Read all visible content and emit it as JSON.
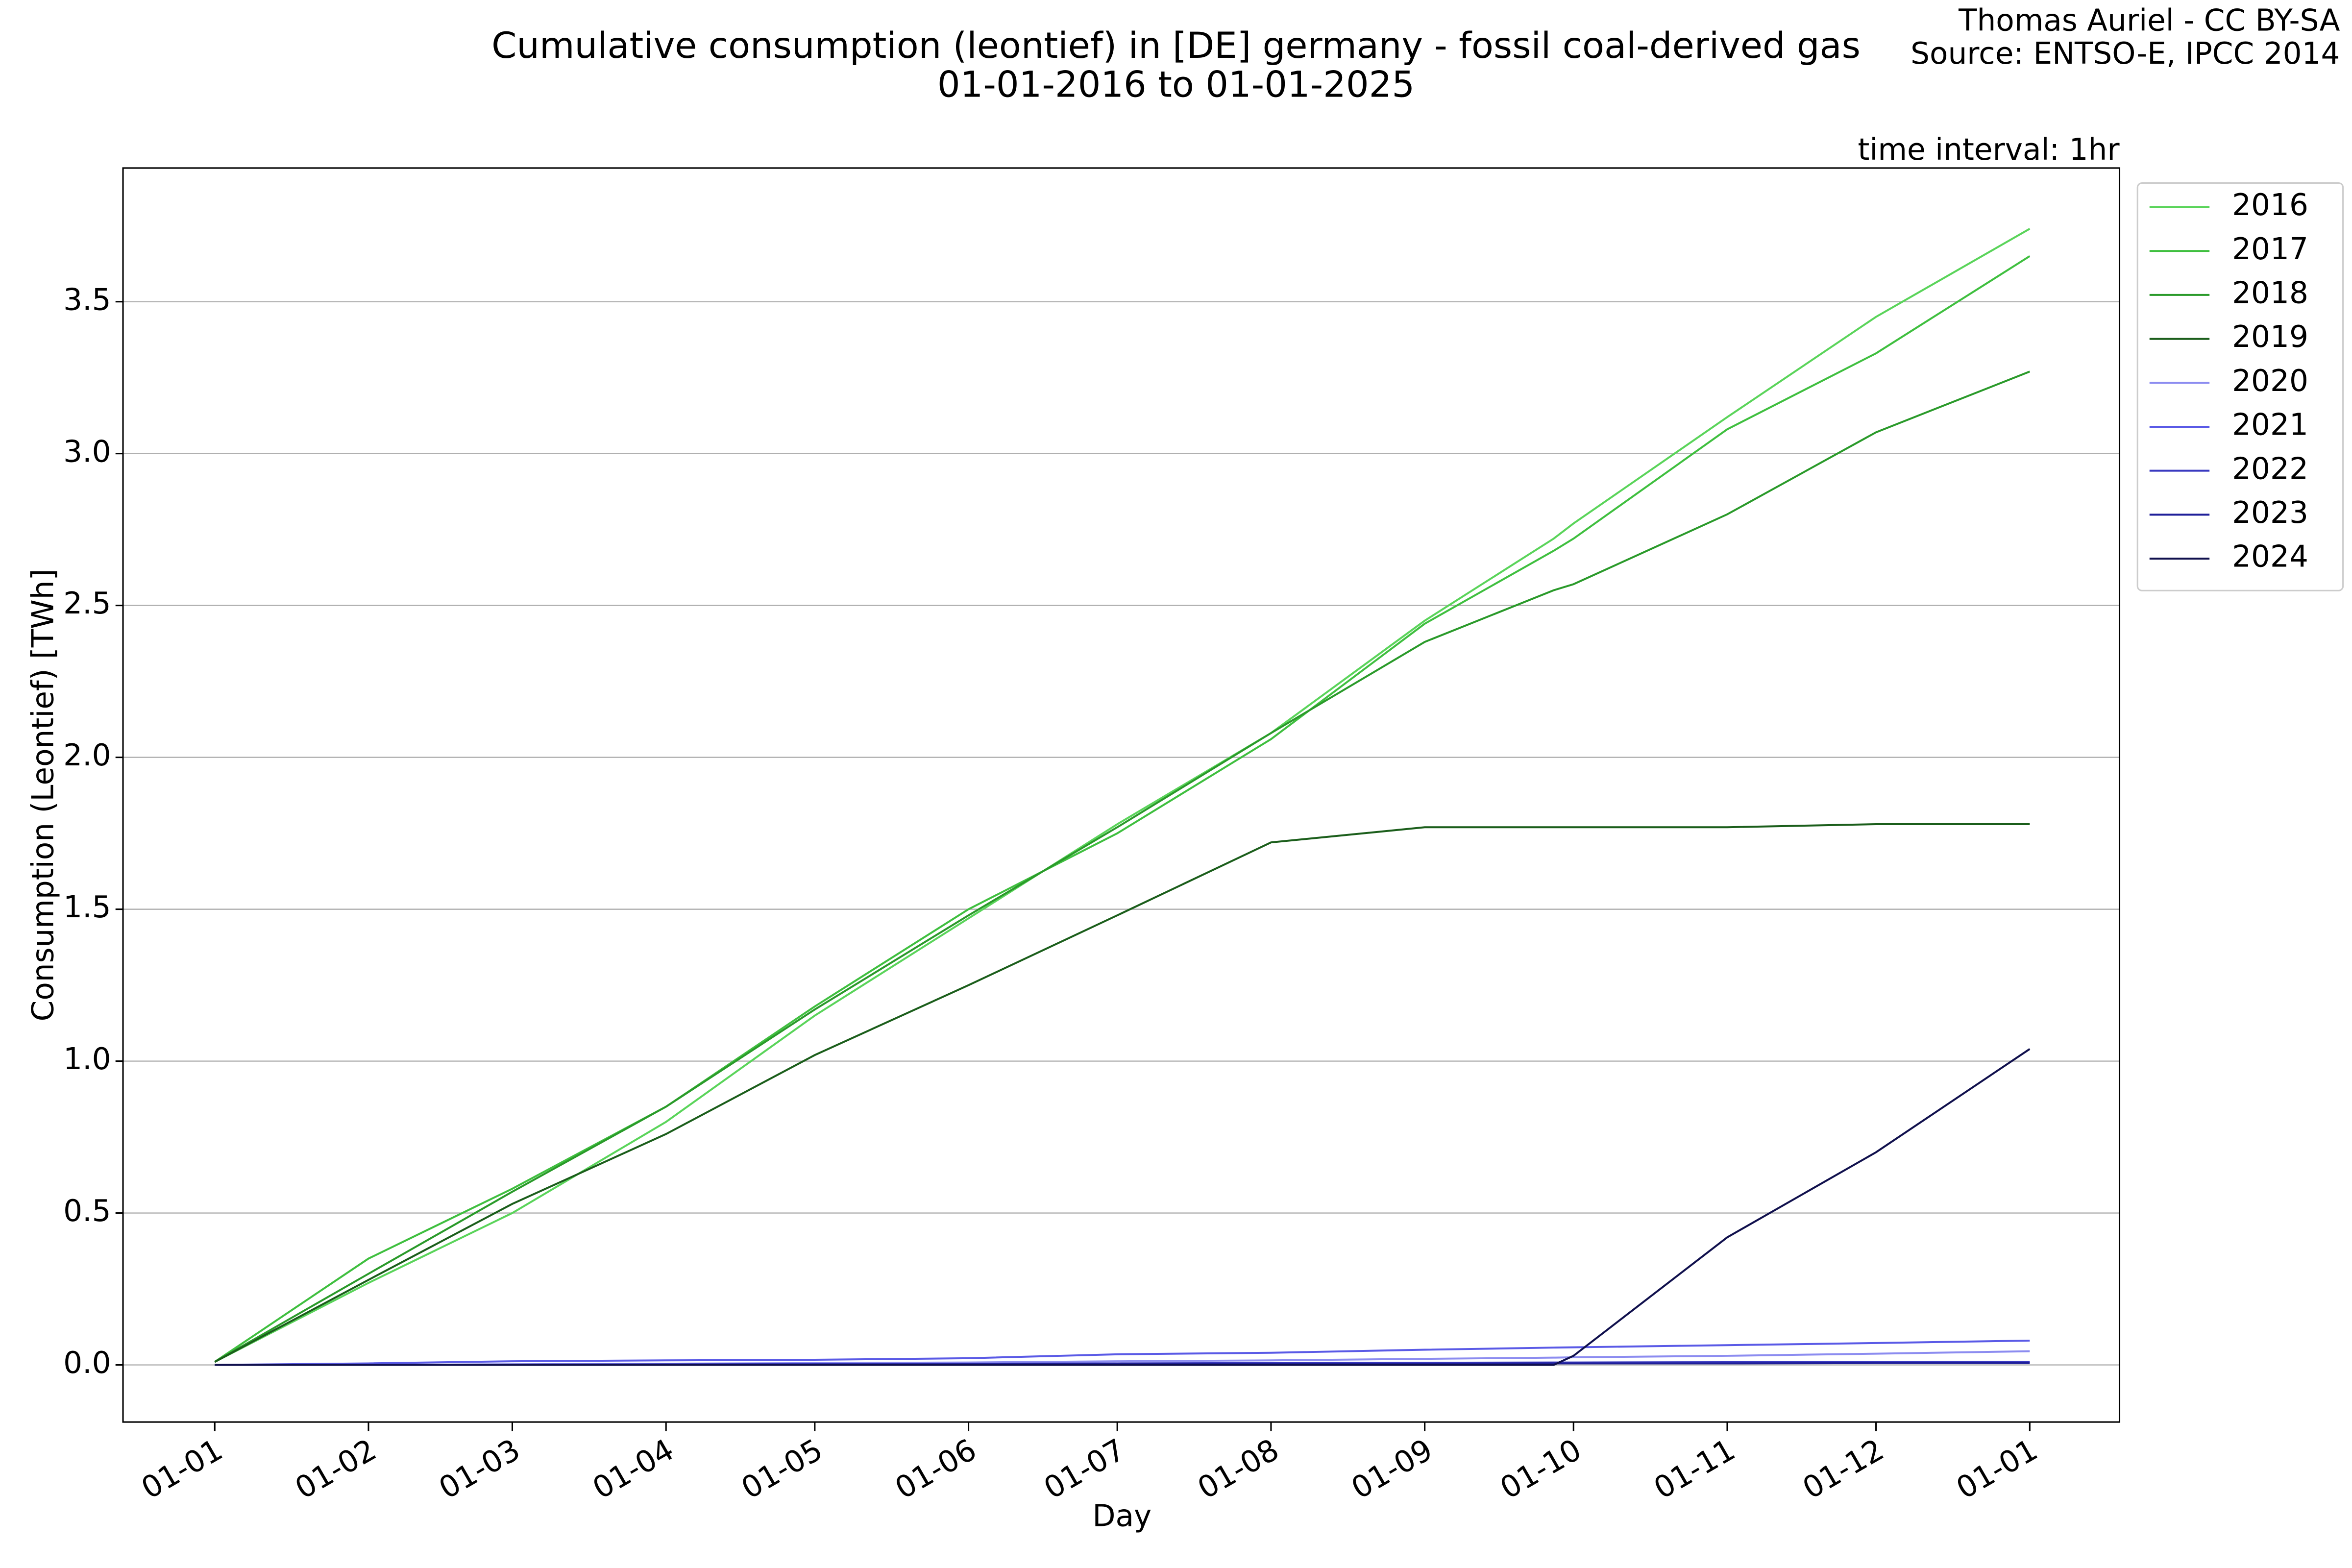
{
  "chart_data": {
    "type": "line",
    "title": "Cumulative consumption (leontief) in [DE] germany - fossil coal-derived gas",
    "subtitle": "01-01-2016 to 01-01-2025",
    "credit": "Thomas Auriel - CC BY-SA",
    "source": "Source: ENTSO-E, IPCC 2014",
    "annotation": "time interval: 1hr",
    "x_label": "Day",
    "y_label": "Consumption (Leontief) [TWh]",
    "x": [
      0,
      31,
      60,
      91,
      121,
      152,
      182,
      213,
      244,
      270,
      274,
      305,
      335,
      366
    ],
    "series": [
      {
        "name": "2016",
        "color": "#5ad45a",
        "values": [
          0.01,
          0.27,
          0.5,
          0.8,
          1.15,
          1.47,
          1.78,
          2.08,
          2.45,
          2.72,
          2.77,
          3.12,
          3.45,
          3.74
        ]
      },
      {
        "name": "2017",
        "color": "#3fbf3f",
        "values": [
          0.01,
          0.35,
          0.58,
          0.85,
          1.18,
          1.5,
          1.75,
          2.06,
          2.44,
          2.68,
          2.72,
          3.08,
          3.33,
          3.65
        ]
      },
      {
        "name": "2018",
        "color": "#2a9a2a",
        "values": [
          0.01,
          0.3,
          0.57,
          0.85,
          1.17,
          1.48,
          1.77,
          2.08,
          2.38,
          2.55,
          2.57,
          2.8,
          3.07,
          3.27
        ]
      },
      {
        "name": "2019",
        "color": "#1b5e1b",
        "values": [
          0.01,
          0.28,
          0.53,
          0.76,
          1.02,
          1.25,
          1.48,
          1.72,
          1.77,
          1.77,
          1.77,
          1.77,
          1.78,
          1.78
        ]
      },
      {
        "name": "2020",
        "color": "#8c8cf0",
        "values": [
          0,
          0,
          0.002,
          0.004,
          0.006,
          0.008,
          0.012,
          0.015,
          0.02,
          0.024,
          0.025,
          0.03,
          0.037,
          0.045
        ]
      },
      {
        "name": "2021",
        "color": "#5a5ae6",
        "values": [
          0,
          0.005,
          0.012,
          0.015,
          0.017,
          0.022,
          0.035,
          0.04,
          0.05,
          0.057,
          0.058,
          0.065,
          0.072,
          0.08
        ]
      },
      {
        "name": "2022",
        "color": "#3a3ac0",
        "values": [
          0,
          0,
          0.001,
          0.002,
          0.003,
          0.004,
          0.005,
          0.006,
          0.007,
          0.008,
          0.008,
          0.009,
          0.009,
          0.01
        ]
      },
      {
        "name": "2023",
        "color": "#1f1f99",
        "values": [
          0,
          0,
          0,
          0,
          0.001,
          0.002,
          0.003,
          0.004,
          0.004,
          0.005,
          0.005,
          0.005,
          0.006,
          0.006
        ]
      },
      {
        "name": "2024",
        "color": "#10104d",
        "values": [
          0,
          0,
          0,
          0,
          0,
          0,
          0,
          0,
          0,
          0,
          0.03,
          0.42,
          0.7,
          1.04
        ]
      }
    ],
    "xlim": [
      -18.5,
      384.1
    ],
    "ylim": [
      -0.188,
      3.94
    ],
    "xticks": [
      {
        "value": 0,
        "label": "01-01"
      },
      {
        "value": 31,
        "label": "01-02"
      },
      {
        "value": 60,
        "label": "01-03"
      },
      {
        "value": 91,
        "label": "01-04"
      },
      {
        "value": 121,
        "label": "01-05"
      },
      {
        "value": 152,
        "label": "01-06"
      },
      {
        "value": 182,
        "label": "01-07"
      },
      {
        "value": 213,
        "label": "01-08"
      },
      {
        "value": 244,
        "label": "01-09"
      },
      {
        "value": 274,
        "label": "01-10"
      },
      {
        "value": 305,
        "label": "01-11"
      },
      {
        "value": 335,
        "label": "01-12"
      },
      {
        "value": 366,
        "label": "01-01"
      }
    ],
    "yticks": [
      {
        "value": 0,
        "label": "0.0"
      },
      0.5,
      {
        "value": 1,
        "label": "1.0"
      },
      1.5,
      {
        "value": 2,
        "label": "2.0"
      },
      2.5,
      {
        "value": 3,
        "label": "3.0"
      },
      3.5
    ],
    "grid": true,
    "legend": "outside upper right"
  }
}
